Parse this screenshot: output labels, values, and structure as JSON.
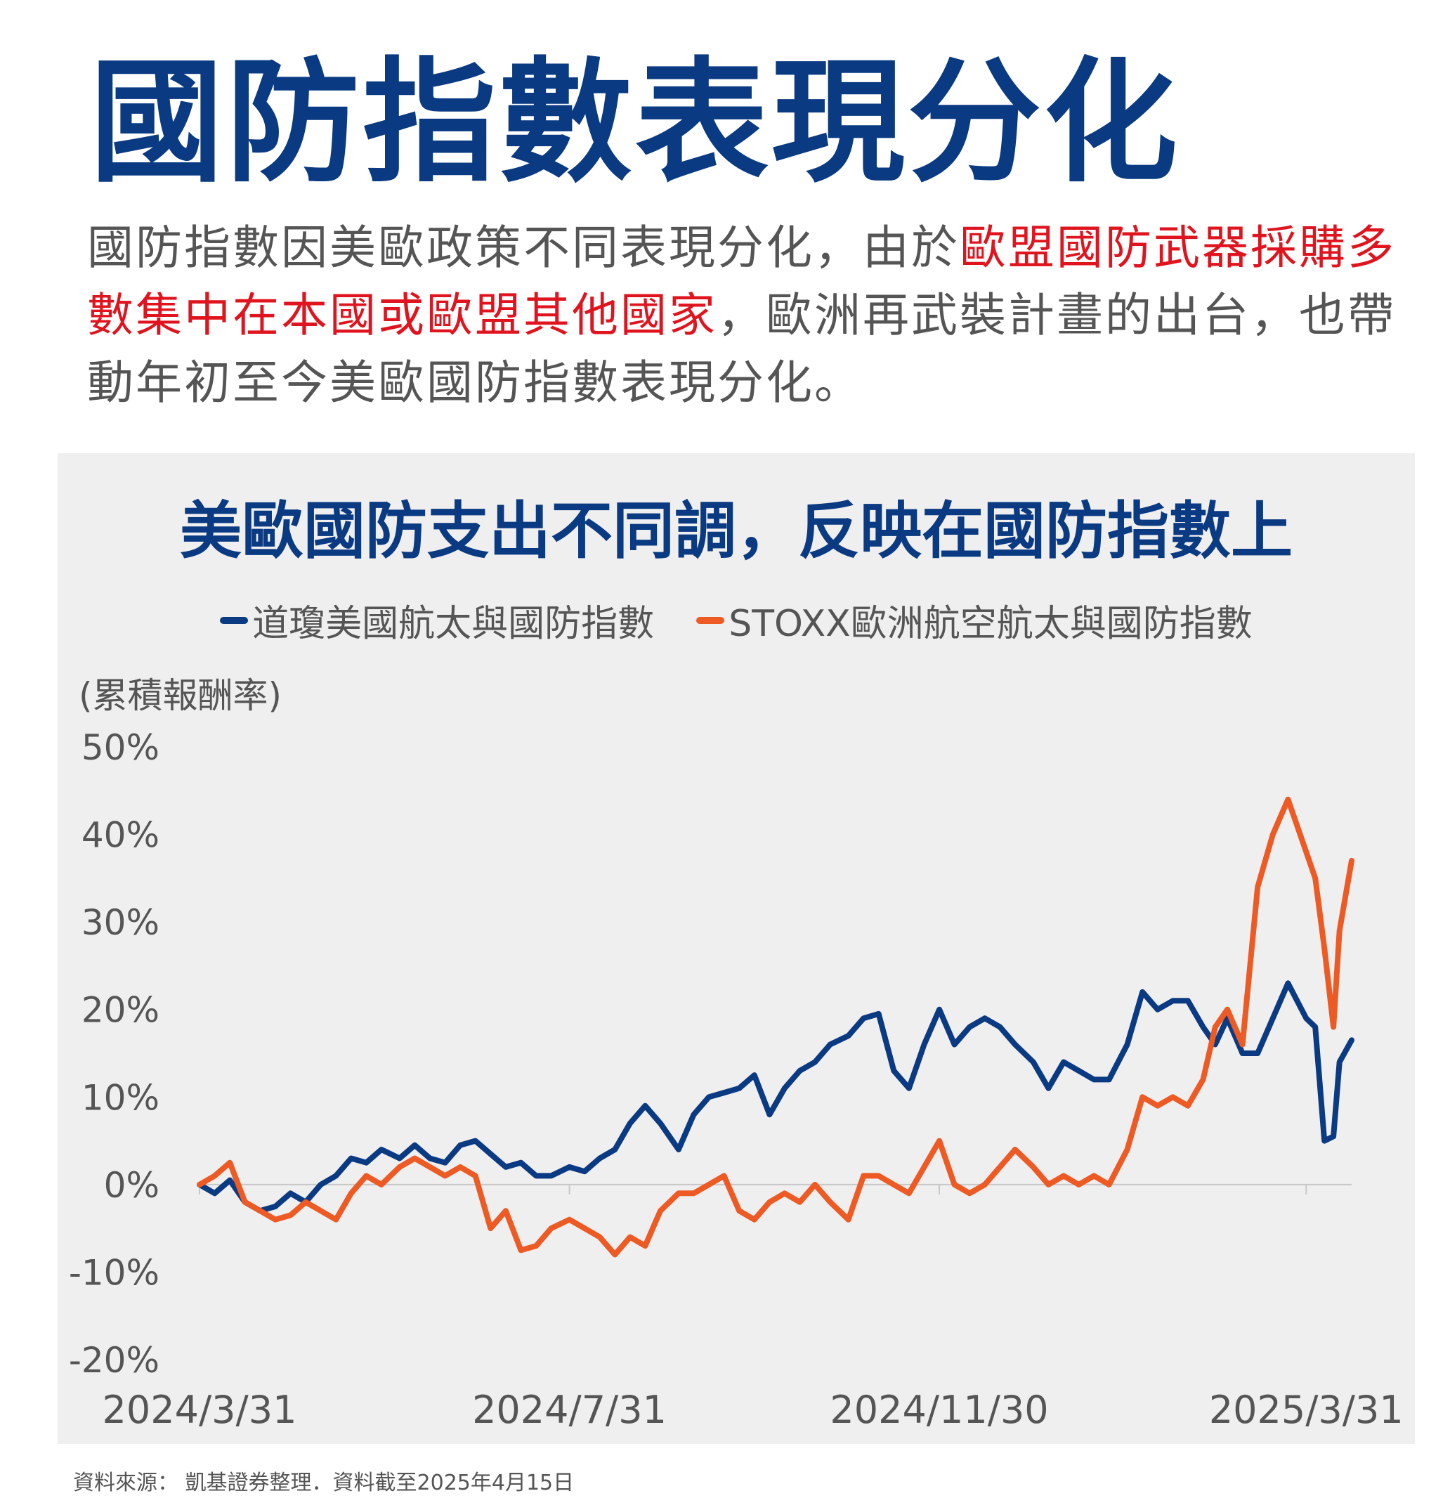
{
  "title": "國防指數表現分化",
  "intro": {
    "part1": "國防指數因美歐政策不同表現分化，由於",
    "highlight": "歐盟國防武器採購多數集中在本國或歐盟其他國家",
    "part2": "，歐洲再武裝計畫的出台，也帶動年初至今美歐國防指數表現分化。"
  },
  "colors": {
    "title": "#0a3a82",
    "highlight": "#e0141e",
    "us": "#0a3a82",
    "eu": "#ee5a24"
  },
  "source": "資料來源： 凱基證券整理．資料截至2025年4月15日",
  "chart_data": {
    "type": "line",
    "title": "美歐國防支出不同調，反映在國防指數上",
    "ylabel": "(累積報酬率)",
    "ylim": [
      -20,
      50
    ],
    "yticks": [
      "50%",
      "40%",
      "30%",
      "20%",
      "10%",
      "0%",
      "-10%",
      "-20%"
    ],
    "yticks_values": [
      50,
      40,
      30,
      20,
      10,
      0,
      -10,
      -20
    ],
    "xticks": [
      "2024/3/31",
      "2024/7/31",
      "2024/11/30",
      "2025/3/31"
    ],
    "xticks_values": [
      "2024-03-31",
      "2024-07-31",
      "2024-11-30",
      "2025-03-31"
    ],
    "x_range": [
      "2024-03-31",
      "2025-04-15"
    ],
    "zero_line": true,
    "grid": false,
    "legend_position": "top",
    "series": [
      {
        "name": "道瓊美國航太與國防指數",
        "color": "#0a3a82",
        "points": [
          [
            "2024-03-31",
            0
          ],
          [
            "2024-04-05",
            -1
          ],
          [
            "2024-04-10",
            0.5
          ],
          [
            "2024-04-15",
            -2
          ],
          [
            "2024-04-20",
            -3
          ],
          [
            "2024-04-25",
            -2.5
          ],
          [
            "2024-04-30",
            -1
          ],
          [
            "2024-05-05",
            -2
          ],
          [
            "2024-05-10",
            0
          ],
          [
            "2024-05-15",
            1
          ],
          [
            "2024-05-20",
            3
          ],
          [
            "2024-05-25",
            2.5
          ],
          [
            "2024-05-30",
            4
          ],
          [
            "2024-06-05",
            3
          ],
          [
            "2024-06-10",
            4.5
          ],
          [
            "2024-06-15",
            3
          ],
          [
            "2024-06-20",
            2.5
          ],
          [
            "2024-06-25",
            4.5
          ],
          [
            "2024-06-30",
            5
          ],
          [
            "2024-07-05",
            3.5
          ],
          [
            "2024-07-10",
            2
          ],
          [
            "2024-07-15",
            2.5
          ],
          [
            "2024-07-20",
            1
          ],
          [
            "2024-07-25",
            1
          ],
          [
            "2024-07-31",
            2
          ],
          [
            "2024-08-05",
            1.5
          ],
          [
            "2024-08-10",
            3
          ],
          [
            "2024-08-15",
            4
          ],
          [
            "2024-08-20",
            7
          ],
          [
            "2024-08-25",
            9
          ],
          [
            "2024-08-30",
            7
          ],
          [
            "2024-09-05",
            4
          ],
          [
            "2024-09-10",
            8
          ],
          [
            "2024-09-15",
            10
          ],
          [
            "2024-09-20",
            10.5
          ],
          [
            "2024-09-25",
            11
          ],
          [
            "2024-09-30",
            12.5
          ],
          [
            "2024-10-05",
            8
          ],
          [
            "2024-10-10",
            11
          ],
          [
            "2024-10-15",
            13
          ],
          [
            "2024-10-20",
            14
          ],
          [
            "2024-10-25",
            16
          ],
          [
            "2024-10-31",
            17
          ],
          [
            "2024-11-05",
            19
          ],
          [
            "2024-11-10",
            19.5
          ],
          [
            "2024-11-15",
            13
          ],
          [
            "2024-11-20",
            11
          ],
          [
            "2024-11-25",
            16
          ],
          [
            "2024-11-30",
            20
          ],
          [
            "2024-12-05",
            16
          ],
          [
            "2024-12-10",
            18
          ],
          [
            "2024-12-15",
            19
          ],
          [
            "2024-12-20",
            18
          ],
          [
            "2024-12-25",
            16
          ],
          [
            "2024-12-31",
            14
          ],
          [
            "2025-01-05",
            11
          ],
          [
            "2025-01-10",
            14
          ],
          [
            "2025-01-15",
            13
          ],
          [
            "2025-01-20",
            12
          ],
          [
            "2025-01-25",
            12
          ],
          [
            "2025-01-31",
            16
          ],
          [
            "2025-02-05",
            22
          ],
          [
            "2025-02-10",
            20
          ],
          [
            "2025-02-15",
            21
          ],
          [
            "2025-02-20",
            21
          ],
          [
            "2025-02-25",
            18
          ],
          [
            "2025-03-01",
            16
          ],
          [
            "2025-03-05",
            19
          ],
          [
            "2025-03-10",
            15
          ],
          [
            "2025-03-15",
            15
          ],
          [
            "2025-03-20",
            19
          ],
          [
            "2025-03-25",
            23
          ],
          [
            "2025-03-31",
            19
          ],
          [
            "2025-04-03",
            18
          ],
          [
            "2025-04-06",
            5
          ],
          [
            "2025-04-09",
            5.5
          ],
          [
            "2025-04-11",
            14
          ],
          [
            "2025-04-15",
            16.5
          ]
        ]
      },
      {
        "name": "STOXX歐洲航空航太與國防指數",
        "color": "#ee5a24",
        "points": [
          [
            "2024-03-31",
            0
          ],
          [
            "2024-04-05",
            1
          ],
          [
            "2024-04-10",
            2.5
          ],
          [
            "2024-04-15",
            -2
          ],
          [
            "2024-04-20",
            -3
          ],
          [
            "2024-04-25",
            -4
          ],
          [
            "2024-04-30",
            -3.5
          ],
          [
            "2024-05-05",
            -2
          ],
          [
            "2024-05-10",
            -3
          ],
          [
            "2024-05-15",
            -4
          ],
          [
            "2024-05-20",
            -1
          ],
          [
            "2024-05-25",
            1
          ],
          [
            "2024-05-30",
            0
          ],
          [
            "2024-06-05",
            2
          ],
          [
            "2024-06-10",
            3
          ],
          [
            "2024-06-15",
            2
          ],
          [
            "2024-06-20",
            1
          ],
          [
            "2024-06-25",
            2
          ],
          [
            "2024-06-30",
            1
          ],
          [
            "2024-07-05",
            -5
          ],
          [
            "2024-07-10",
            -3
          ],
          [
            "2024-07-15",
            -7.5
          ],
          [
            "2024-07-20",
            -7
          ],
          [
            "2024-07-25",
            -5
          ],
          [
            "2024-07-31",
            -4
          ],
          [
            "2024-08-05",
            -5
          ],
          [
            "2024-08-10",
            -6
          ],
          [
            "2024-08-15",
            -8
          ],
          [
            "2024-08-20",
            -6
          ],
          [
            "2024-08-25",
            -7
          ],
          [
            "2024-08-30",
            -3
          ],
          [
            "2024-09-05",
            -1
          ],
          [
            "2024-09-10",
            -1
          ],
          [
            "2024-09-15",
            0
          ],
          [
            "2024-09-20",
            1
          ],
          [
            "2024-09-25",
            -3
          ],
          [
            "2024-09-30",
            -4
          ],
          [
            "2024-10-05",
            -2
          ],
          [
            "2024-10-10",
            -1
          ],
          [
            "2024-10-15",
            -2
          ],
          [
            "2024-10-20",
            0
          ],
          [
            "2024-10-25",
            -2
          ],
          [
            "2024-10-31",
            -4
          ],
          [
            "2024-11-05",
            1
          ],
          [
            "2024-11-10",
            1
          ],
          [
            "2024-11-15",
            0
          ],
          [
            "2024-11-20",
            -1
          ],
          [
            "2024-11-25",
            2
          ],
          [
            "2024-11-30",
            5
          ],
          [
            "2024-12-05",
            0
          ],
          [
            "2024-12-10",
            -1
          ],
          [
            "2024-12-15",
            0
          ],
          [
            "2024-12-20",
            2
          ],
          [
            "2024-12-25",
            4
          ],
          [
            "2024-12-31",
            2
          ],
          [
            "2025-01-05",
            0
          ],
          [
            "2025-01-10",
            1
          ],
          [
            "2025-01-15",
            0
          ],
          [
            "2025-01-20",
            1
          ],
          [
            "2025-01-25",
            0
          ],
          [
            "2025-01-31",
            4
          ],
          [
            "2025-02-05",
            10
          ],
          [
            "2025-02-10",
            9
          ],
          [
            "2025-02-15",
            10
          ],
          [
            "2025-02-20",
            9
          ],
          [
            "2025-02-25",
            12
          ],
          [
            "2025-03-01",
            18
          ],
          [
            "2025-03-05",
            20
          ],
          [
            "2025-03-10",
            16
          ],
          [
            "2025-03-15",
            34
          ],
          [
            "2025-03-20",
            40
          ],
          [
            "2025-03-25",
            44
          ],
          [
            "2025-03-31",
            38
          ],
          [
            "2025-04-03",
            35
          ],
          [
            "2025-04-06",
            27
          ],
          [
            "2025-04-09",
            18
          ],
          [
            "2025-04-11",
            29
          ],
          [
            "2025-04-15",
            37
          ]
        ]
      }
    ]
  }
}
